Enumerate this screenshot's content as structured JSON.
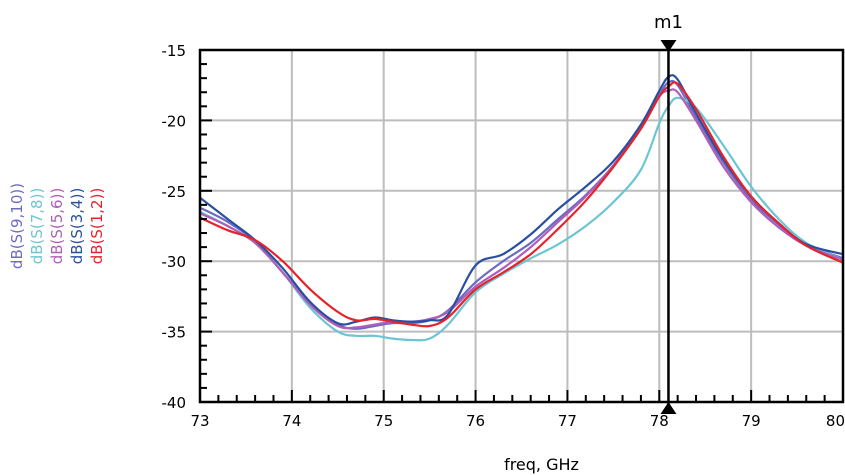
{
  "chart_data": {
    "type": "line",
    "title": "",
    "xlabel": "freq, GHz",
    "ylabel": "",
    "xlim": [
      73,
      80
    ],
    "ylim": [
      -40,
      -15
    ],
    "xticks": [
      73,
      74,
      75,
      76,
      77,
      78,
      79,
      80
    ],
    "yticks": [
      -40,
      -35,
      -30,
      -25,
      -20,
      -15
    ],
    "grid": true,
    "legend_position": "left, rotated vertical stack",
    "marker": {
      "name": "m1",
      "x": 78.1
    },
    "series": [
      {
        "name": "dB(S(9,10))",
        "color": "#6b6bc4",
        "x": [
          73,
          73.3,
          73.6,
          73.9,
          74.2,
          74.5,
          74.7,
          74.9,
          75.1,
          75.3,
          75.5,
          75.7,
          76.0,
          76.3,
          76.6,
          76.9,
          77.2,
          77.5,
          77.8,
          78.0,
          78.1,
          78.2,
          78.4,
          78.7,
          79.0,
          79.3,
          79.6,
          80.0
        ],
        "y": [
          -26.2,
          -27.2,
          -28.6,
          -30.8,
          -33.0,
          -34.5,
          -34.8,
          -34.6,
          -34.4,
          -34.4,
          -34.2,
          -33.5,
          -31.5,
          -30.0,
          -28.7,
          -27.0,
          -25.3,
          -23.2,
          -20.5,
          -18.2,
          -17.3,
          -17.5,
          -19.8,
          -23.0,
          -25.6,
          -27.4,
          -28.8,
          -29.8
        ]
      },
      {
        "name": "dB(S(7,8))",
        "color": "#6cc5d3",
        "x": [
          73,
          73.3,
          73.6,
          73.9,
          74.2,
          74.5,
          74.7,
          74.9,
          75.1,
          75.3,
          75.5,
          75.7,
          76.0,
          76.3,
          76.6,
          76.9,
          77.2,
          77.5,
          77.8,
          78.0,
          78.1,
          78.2,
          78.4,
          78.7,
          79.0,
          79.3,
          79.6,
          80.0
        ],
        "y": [
          -26.5,
          -27.5,
          -28.7,
          -30.8,
          -33.3,
          -35.0,
          -35.3,
          -35.3,
          -35.5,
          -35.6,
          -35.5,
          -34.5,
          -32.2,
          -30.9,
          -29.8,
          -28.8,
          -27.5,
          -25.8,
          -23.5,
          -20.2,
          -19.0,
          -18.4,
          -19.1,
          -21.8,
          -24.7,
          -27.0,
          -28.7,
          -29.9
        ]
      },
      {
        "name": "dB(S(5,6))",
        "color": "#b05eb8",
        "x": [
          73,
          73.3,
          73.6,
          73.9,
          74.2,
          74.5,
          74.7,
          74.9,
          75.1,
          75.3,
          75.5,
          75.7,
          76.0,
          76.3,
          76.6,
          76.9,
          77.2,
          77.5,
          77.8,
          78.0,
          78.1,
          78.2,
          78.4,
          78.7,
          79.0,
          79.3,
          79.6,
          80.0
        ],
        "y": [
          -26.6,
          -27.5,
          -28.7,
          -30.8,
          -33.1,
          -34.6,
          -34.7,
          -34.5,
          -34.3,
          -34.3,
          -34.1,
          -33.6,
          -31.8,
          -30.5,
          -29.0,
          -27.2,
          -25.4,
          -23.2,
          -20.4,
          -18.3,
          -17.9,
          -18.0,
          -20.0,
          -23.3,
          -25.8,
          -27.6,
          -28.9,
          -29.9
        ]
      },
      {
        "name": "dB(S(3,4))",
        "color": "#2a4fa0",
        "x": [
          73,
          73.3,
          73.6,
          73.9,
          74.2,
          74.5,
          74.7,
          74.9,
          75.1,
          75.3,
          75.5,
          75.7,
          76.0,
          76.3,
          76.6,
          76.9,
          77.2,
          77.5,
          77.8,
          78.0,
          78.1,
          78.2,
          78.4,
          78.7,
          79.0,
          79.3,
          79.6,
          80.0
        ],
        "y": [
          -25.5,
          -27.0,
          -28.5,
          -30.5,
          -32.9,
          -34.4,
          -34.3,
          -34.0,
          -34.2,
          -34.3,
          -34.2,
          -33.8,
          -30.3,
          -29.5,
          -28.1,
          -26.3,
          -24.7,
          -22.9,
          -20.3,
          -17.9,
          -16.9,
          -17.1,
          -19.5,
          -22.8,
          -25.4,
          -27.3,
          -28.8,
          -29.5
        ]
      },
      {
        "name": "dB(S(1,2))",
        "color": "#e4232a",
        "x": [
          73,
          73.3,
          73.6,
          73.9,
          74.2,
          74.5,
          74.7,
          74.9,
          75.1,
          75.3,
          75.5,
          75.7,
          76.0,
          76.3,
          76.6,
          76.9,
          77.2,
          77.5,
          77.8,
          78.0,
          78.1,
          78.2,
          78.4,
          78.7,
          79.0,
          79.3,
          79.6,
          80.0
        ],
        "y": [
          -26.9,
          -27.8,
          -28.5,
          -30.0,
          -32.0,
          -33.6,
          -34.2,
          -34.1,
          -34.3,
          -34.5,
          -34.6,
          -34.0,
          -32.0,
          -30.8,
          -29.5,
          -27.7,
          -25.7,
          -23.3,
          -20.6,
          -18.3,
          -17.6,
          -17.4,
          -19.2,
          -22.6,
          -25.4,
          -27.3,
          -28.9,
          -30.1
        ]
      }
    ]
  }
}
